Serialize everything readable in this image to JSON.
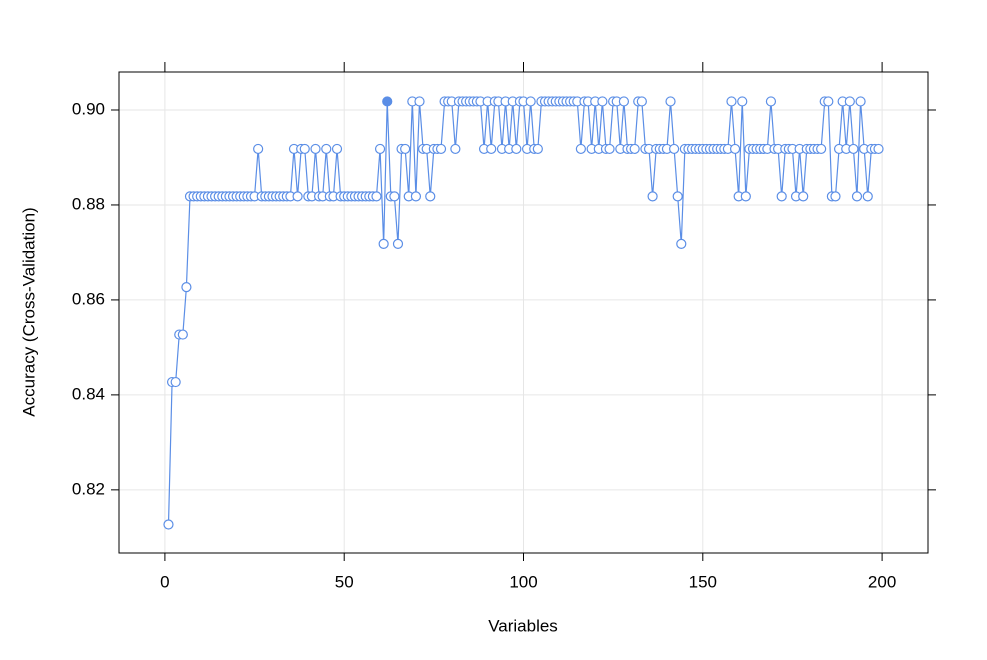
{
  "chart_data": {
    "type": "line",
    "x_label": "Variables",
    "y_label": "Accuracy (Cross-Validation)",
    "xlim": [
      -12.8,
      212.8
    ],
    "ylim": [
      0.8067,
      0.908
    ],
    "xticks": [
      0,
      50,
      100,
      150,
      200
    ],
    "yticks": [
      {
        "value": 0.82,
        "label": "0.82"
      },
      {
        "value": 0.84,
        "label": "0.84"
      },
      {
        "value": 0.86,
        "label": "0.86"
      },
      {
        "value": 0.88,
        "label": "0.88"
      },
      {
        "value": 0.9,
        "label": "0.90"
      }
    ],
    "grid": true,
    "best": 62,
    "x": [
      1,
      2,
      3,
      4,
      5,
      6,
      7,
      8,
      9,
      10,
      11,
      12,
      13,
      14,
      15,
      16,
      17,
      18,
      19,
      20,
      21,
      22,
      23,
      24,
      25,
      26,
      27,
      28,
      29,
      30,
      31,
      32,
      33,
      34,
      35,
      36,
      37,
      38,
      39,
      40,
      41,
      42,
      43,
      44,
      45,
      46,
      47,
      48,
      49,
      50,
      51,
      52,
      53,
      54,
      55,
      56,
      57,
      58,
      59,
      60,
      61,
      62,
      63,
      64,
      65,
      66,
      67,
      68,
      69,
      70,
      71,
      72,
      73,
      74,
      75,
      76,
      77,
      78,
      79,
      80,
      81,
      82,
      83,
      84,
      85,
      86,
      87,
      88,
      89,
      90,
      91,
      92,
      93,
      94,
      95,
      96,
      97,
      98,
      99,
      100,
      101,
      102,
      103,
      104,
      105,
      106,
      107,
      108,
      109,
      110,
      111,
      112,
      113,
      114,
      115,
      116,
      117,
      118,
      119,
      120,
      121,
      122,
      123,
      124,
      125,
      126,
      127,
      128,
      129,
      130,
      131,
      132,
      133,
      134,
      135,
      136,
      137,
      138,
      139,
      140,
      141,
      142,
      143,
      144,
      145,
      146,
      147,
      148,
      149,
      150,
      151,
      152,
      153,
      154,
      155,
      156,
      157,
      158,
      159,
      160,
      161,
      162,
      163,
      164,
      165,
      166,
      167,
      168,
      169,
      170,
      171,
      172,
      173,
      174,
      175,
      176,
      177,
      178,
      179,
      180,
      181,
      182,
      183,
      184,
      185,
      186,
      187,
      188,
      189,
      190,
      191,
      192,
      193,
      194,
      195,
      196,
      197,
      198,
      199
    ],
    "series": [
      {
        "color": "#5b8ee6",
        "values": [
          0.8127,
          0.8427,
          0.8427,
          0.8527,
          0.8527,
          0.8627,
          0.8818,
          0.8818,
          0.8818,
          0.8818,
          0.8818,
          0.8818,
          0.8818,
          0.8818,
          0.8818,
          0.8818,
          0.8818,
          0.8818,
          0.8818,
          0.8818,
          0.8818,
          0.8818,
          0.8818,
          0.8818,
          0.8818,
          0.8918,
          0.8818,
          0.8818,
          0.8818,
          0.8818,
          0.8818,
          0.8818,
          0.8818,
          0.8818,
          0.8818,
          0.8918,
          0.8818,
          0.8918,
          0.8918,
          0.8818,
          0.8818,
          0.8918,
          0.8818,
          0.8818,
          0.8918,
          0.8818,
          0.8818,
          0.8918,
          0.8818,
          0.8818,
          0.8818,
          0.8818,
          0.8818,
          0.8818,
          0.8818,
          0.8818,
          0.8818,
          0.8818,
          0.8818,
          0.8918,
          0.8718,
          0.9018,
          0.8818,
          0.8818,
          0.8718,
          0.8918,
          0.8918,
          0.8818,
          0.9018,
          0.8818,
          0.9018,
          0.8918,
          0.8918,
          0.8818,
          0.8918,
          0.8918,
          0.8918,
          0.9018,
          0.9018,
          0.9018,
          0.8918,
          0.9018,
          0.9018,
          0.9018,
          0.9018,
          0.9018,
          0.9018,
          0.9018,
          0.8918,
          0.9018,
          0.8918,
          0.9018,
          0.9018,
          0.8918,
          0.9018,
          0.8918,
          0.9018,
          0.8918,
          0.9018,
          0.9018,
          0.8918,
          0.9018,
          0.8918,
          0.8918,
          0.9018,
          0.9018,
          0.9018,
          0.9018,
          0.9018,
          0.9018,
          0.9018,
          0.9018,
          0.9018,
          0.9018,
          0.9018,
          0.8918,
          0.9018,
          0.9018,
          0.8918,
          0.9018,
          0.8918,
          0.9018,
          0.8918,
          0.8918,
          0.9018,
          0.9018,
          0.8918,
          0.9018,
          0.8918,
          0.8918,
          0.8918,
          0.9018,
          0.9018,
          0.8918,
          0.8918,
          0.8818,
          0.8918,
          0.8918,
          0.8918,
          0.8918,
          0.9018,
          0.8918,
          0.8818,
          0.8718,
          0.8918,
          0.8918,
          0.8918,
          0.8918,
          0.8918,
          0.8918,
          0.8918,
          0.8918,
          0.8918,
          0.8918,
          0.8918,
          0.8918,
          0.8918,
          0.9018,
          0.8918,
          0.8818,
          0.9018,
          0.8818,
          0.8918,
          0.8918,
          0.8918,
          0.8918,
          0.8918,
          0.8918,
          0.9018,
          0.8918,
          0.8918,
          0.8818,
          0.8918,
          0.8918,
          0.8918,
          0.8818,
          0.8918,
          0.8818,
          0.8918,
          0.8918,
          0.8918,
          0.8918,
          0.8918,
          0.9018,
          0.9018,
          0.8818,
          0.8818,
          0.8918,
          0.9018,
          0.8918,
          0.9018,
          0.8918,
          0.8818,
          0.9018,
          0.8918,
          0.8818,
          0.8918,
          0.8918,
          0.8918
        ]
      }
    ]
  }
}
